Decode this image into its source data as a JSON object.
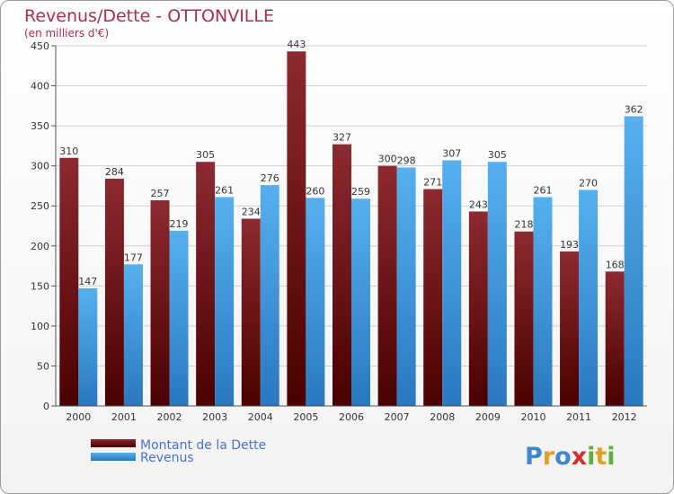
{
  "chart_data": {
    "type": "bar",
    "title": "Revenus/Dette - OTTONVILLE",
    "subtitle": "(en milliers d'€)",
    "categories": [
      "2000",
      "2001",
      "2002",
      "2003",
      "2004",
      "2005",
      "2006",
      "2007",
      "2008",
      "2009",
      "2010",
      "2011",
      "2012"
    ],
    "series": [
      {
        "name": "Montant de la Dette",
        "color": "#7a1a20",
        "values": [
          310,
          284,
          257,
          305,
          234,
          443,
          327,
          300,
          271,
          243,
          218,
          193,
          168
        ]
      },
      {
        "name": "Revenus",
        "color": "#3f9be0",
        "values": [
          147,
          177,
          219,
          261,
          276,
          260,
          259,
          298,
          307,
          305,
          261,
          270,
          362
        ]
      }
    ],
    "ylim": [
      0,
      450
    ],
    "yticks": [
      0,
      50,
      100,
      150,
      200,
      250,
      300,
      350,
      400,
      450
    ],
    "grid": true,
    "legend_position": "bottom-left"
  },
  "logo": {
    "text": "Proxiti",
    "letters": [
      "P",
      "r",
      "o",
      "x",
      "i",
      "t",
      "i"
    ],
    "colors": [
      "#3f88d0",
      "#e0a020",
      "#3f88d0",
      "#d03030",
      "#60b040",
      "#e0a020",
      "#60b040"
    ]
  }
}
